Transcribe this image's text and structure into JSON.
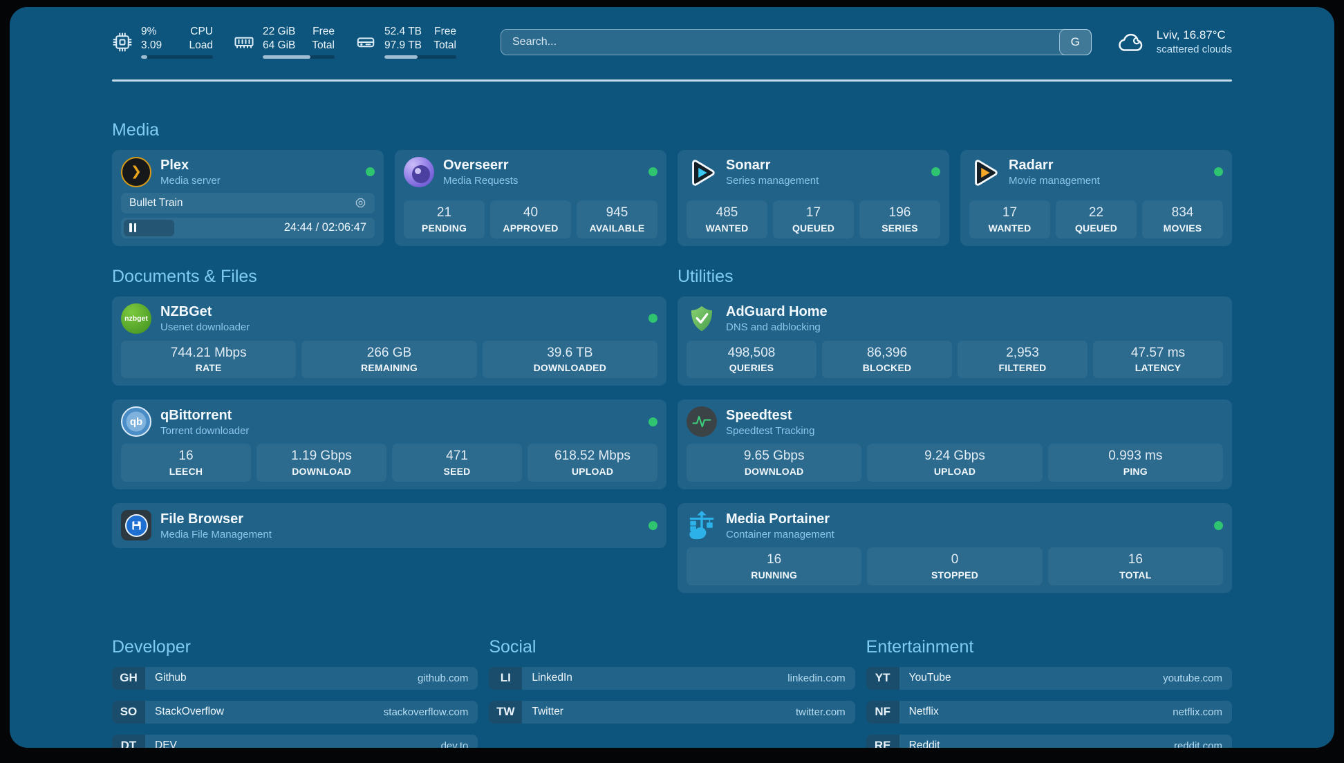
{
  "colors": {
    "page_background": "#0e557e",
    "accent_heading": "#7fccf2",
    "status_online": "#2fc46f",
    "plex_amber": "#e9a61d",
    "sonarr_cyan": "#38c6f2",
    "radarr_amber": "#f7a727",
    "adguard_green": "#5cab52",
    "portainer_blue": "#2cb2e8"
  },
  "header": {
    "system": [
      {
        "icon": "cpu-icon",
        "value_top": "9%",
        "value_bottom": "3.09",
        "label_top": "CPU",
        "label_bottom": "Load",
        "progress": 9
      },
      {
        "icon": "memory-icon",
        "value_top": "22 GiB",
        "value_bottom": "64 GiB",
        "label_top": "Free",
        "label_bottom": "Total",
        "progress": 66
      },
      {
        "icon": "disk-icon",
        "value_top": "52.4 TB",
        "value_bottom": "97.9 TB",
        "label_top": "Free",
        "label_bottom": "Total",
        "progress": 46
      }
    ],
    "search": {
      "placeholder": "Search...",
      "button_label": "G"
    },
    "weather": {
      "icon": "cloud-icon",
      "location": "Lviv, 16.87°C",
      "condition": "scattered clouds"
    }
  },
  "sections": {
    "media": {
      "title": "Media",
      "services": [
        {
          "icon": "plex-icon",
          "name": "Plex",
          "subtitle": "Media server",
          "online": true,
          "now_playing": "Bullet Train",
          "time": "24:44 / 02:06:47",
          "progress": 20
        },
        {
          "icon": "overseerr-icon",
          "name": "Overseerr",
          "subtitle": "Media Requests",
          "online": true,
          "stats": [
            {
              "value": "21",
              "label": "PENDING"
            },
            {
              "value": "40",
              "label": "APPROVED"
            },
            {
              "value": "945",
              "label": "AVAILABLE"
            }
          ]
        },
        {
          "icon": "sonarr-icon",
          "name": "Sonarr",
          "subtitle": "Series management",
          "online": true,
          "stats": [
            {
              "value": "485",
              "label": "WANTED"
            },
            {
              "value": "17",
              "label": "QUEUED"
            },
            {
              "value": "196",
              "label": "SERIES"
            }
          ]
        },
        {
          "icon": "radarr-icon",
          "name": "Radarr",
          "subtitle": "Movie management",
          "online": true,
          "stats": [
            {
              "value": "17",
              "label": "WANTED"
            },
            {
              "value": "22",
              "label": "QUEUED"
            },
            {
              "value": "834",
              "label": "MOVIES"
            }
          ]
        }
      ]
    },
    "documents": {
      "title": "Documents & Files",
      "services": [
        {
          "icon": "nzbget-icon",
          "icon_text": "nzbget",
          "name": "NZBGet",
          "subtitle": "Usenet downloader",
          "online": true,
          "stats": [
            {
              "value": "744.21 Mbps",
              "label": "RATE"
            },
            {
              "value": "266 GB",
              "label": "REMAINING"
            },
            {
              "value": "39.6 TB",
              "label": "DOWNLOADED"
            }
          ]
        },
        {
          "icon": "qbittorrent-icon",
          "icon_text": "qb",
          "name": "qBittorrent",
          "subtitle": "Torrent downloader",
          "online": true,
          "stats": [
            {
              "value": "16",
              "label": "LEECH"
            },
            {
              "value": "1.19 Gbps",
              "label": "DOWNLOAD"
            },
            {
              "value": "471",
              "label": "SEED"
            },
            {
              "value": "618.52 Mbps",
              "label": "UPLOAD"
            }
          ]
        },
        {
          "icon": "filebrowser-icon",
          "name": "File Browser",
          "subtitle": "Media File Management",
          "online": true,
          "stats": []
        }
      ]
    },
    "utilities": {
      "title": "Utilities",
      "services": [
        {
          "icon": "adguard-icon",
          "name": "AdGuard Home",
          "subtitle": "DNS and adblocking",
          "online": false,
          "stats": [
            {
              "value": "498,508",
              "label": "QUERIES"
            },
            {
              "value": "86,396",
              "label": "BLOCKED"
            },
            {
              "value": "2,953",
              "label": "FILTERED"
            },
            {
              "value": "47.57 ms",
              "label": "LATENCY"
            }
          ]
        },
        {
          "icon": "speedtest-icon",
          "name": "Speedtest",
          "subtitle": "Speedtest Tracking",
          "online": false,
          "stats": [
            {
              "value": "9.65 Gbps",
              "label": "DOWNLOAD"
            },
            {
              "value": "9.24 Gbps",
              "label": "UPLOAD"
            },
            {
              "value": "0.993 ms",
              "label": "PING"
            }
          ]
        },
        {
          "icon": "portainer-icon",
          "name": "Media Portainer",
          "subtitle": "Container management",
          "online": true,
          "stats": [
            {
              "value": "16",
              "label": "RUNNING"
            },
            {
              "value": "0",
              "label": "STOPPED"
            },
            {
              "value": "16",
              "label": "TOTAL"
            }
          ]
        }
      ]
    }
  },
  "bookmarks": [
    {
      "title": "Developer",
      "links": [
        {
          "abbr": "GH",
          "name": "Github",
          "domain": "github.com"
        },
        {
          "abbr": "SO",
          "name": "StackOverflow",
          "domain": "stackoverflow.com"
        },
        {
          "abbr": "DT",
          "name": "DEV",
          "domain": "dev.to"
        }
      ]
    },
    {
      "title": "Social",
      "links": [
        {
          "abbr": "LI",
          "name": "LinkedIn",
          "domain": "linkedin.com"
        },
        {
          "abbr": "TW",
          "name": "Twitter",
          "domain": "twitter.com"
        }
      ]
    },
    {
      "title": "Entertainment",
      "links": [
        {
          "abbr": "YT",
          "name": "YouTube",
          "domain": "youtube.com"
        },
        {
          "abbr": "NF",
          "name": "Netflix",
          "domain": "netflix.com"
        },
        {
          "abbr": "RE",
          "name": "Reddit",
          "domain": "reddit.com"
        }
      ]
    }
  ]
}
